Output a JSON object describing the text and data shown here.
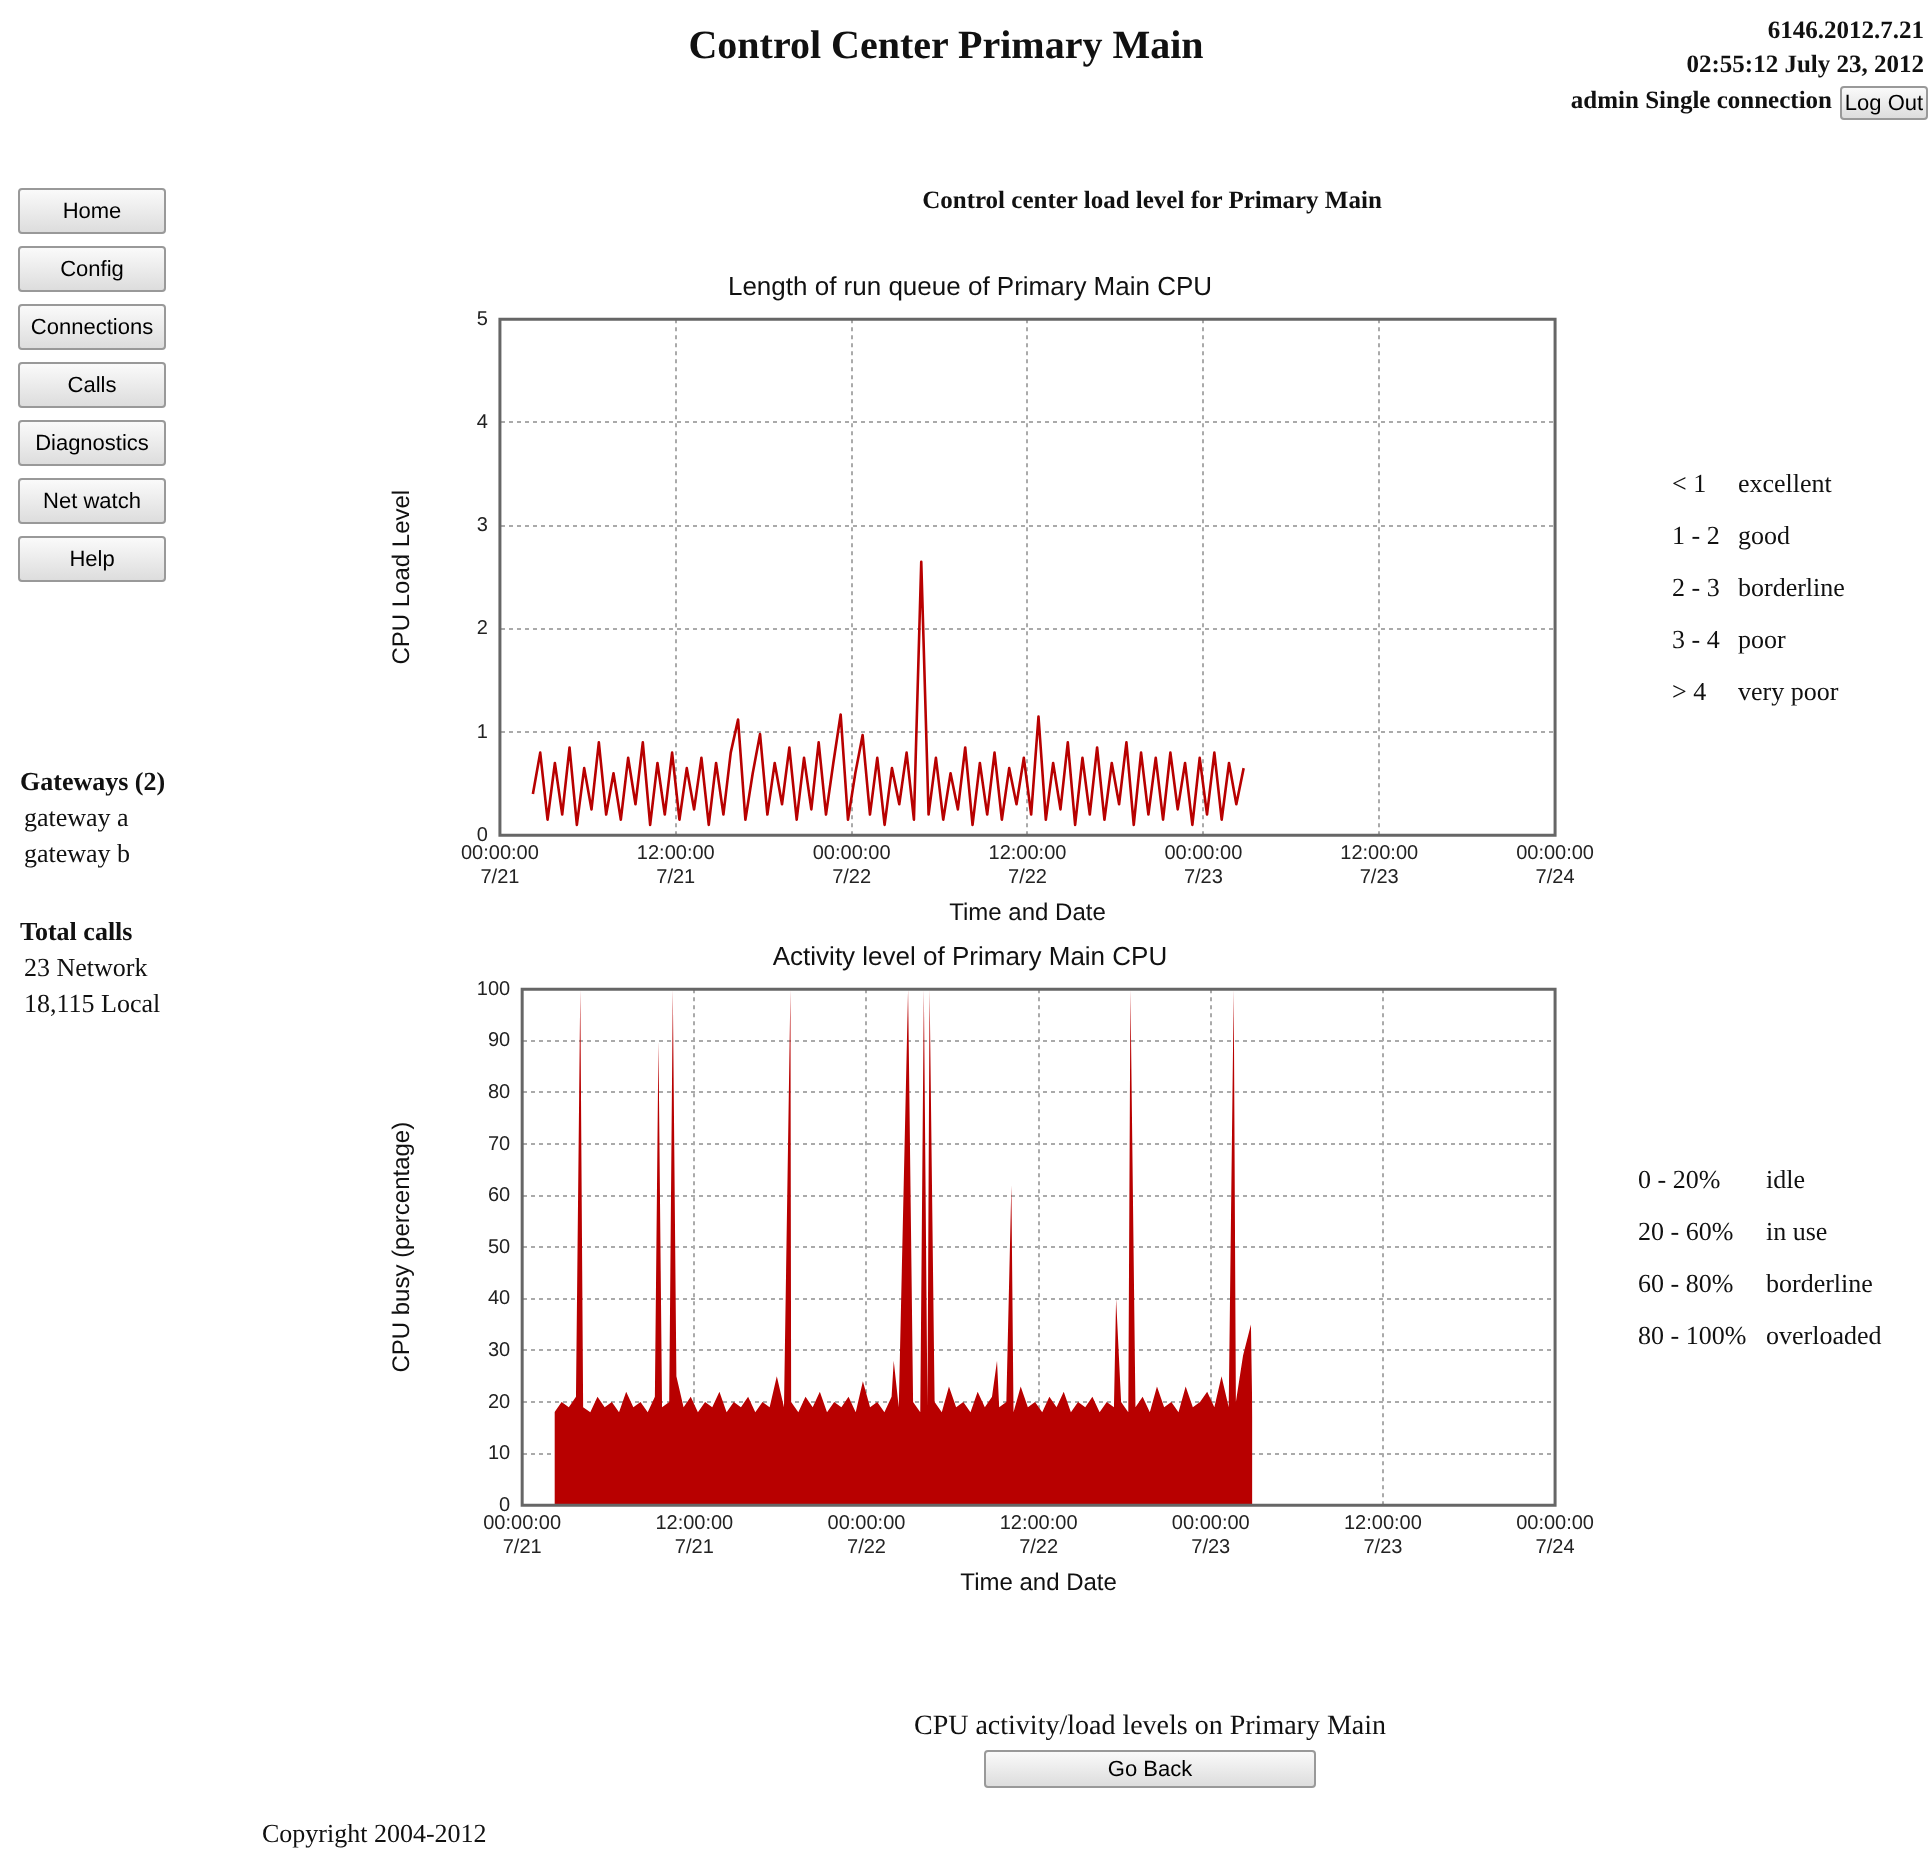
{
  "chart_data": [
    {
      "type": "line",
      "title": "Length of run queue of Primary Main CPU",
      "xlabel": "Time and Date",
      "ylabel": "CPU Load Level",
      "xlim": [
        "2012-07-21T00:00",
        "2012-07-24T00:00"
      ],
      "xticks": [
        {
          "value": "2012-07-21T00:00",
          "label": "00:00:00\n7/21"
        },
        {
          "value": "2012-07-21T12:00",
          "label": "12:00:00\n7/21"
        },
        {
          "value": "2012-07-22T00:00",
          "label": "00:00:00\n7/22"
        },
        {
          "value": "2012-07-22T12:00",
          "label": "12:00:00\n7/22"
        },
        {
          "value": "2012-07-23T00:00",
          "label": "00:00:00\n7/23"
        },
        {
          "value": "2012-07-23T12:00",
          "label": "12:00:00\n7/23"
        },
        {
          "value": "2012-07-24T00:00",
          "label": "00:00:00\n7/24"
        }
      ],
      "ylim": [
        0,
        5
      ],
      "yticks": [
        0,
        1,
        2,
        3,
        4,
        5
      ],
      "grid": true,
      "legend": false,
      "marker": "none",
      "line_style": "solid",
      "series": [
        {
          "color": "#b80000",
          "x": [
            "2012-07-21T02:15",
            "2012-07-21T02:45",
            "2012-07-21T03:15",
            "2012-07-21T03:45",
            "2012-07-21T04:15",
            "2012-07-21T04:45",
            "2012-07-21T05:15",
            "2012-07-21T05:45",
            "2012-07-21T06:15",
            "2012-07-21T06:45",
            "2012-07-21T07:15",
            "2012-07-21T07:45",
            "2012-07-21T08:15",
            "2012-07-21T08:45",
            "2012-07-21T09:15",
            "2012-07-21T09:45",
            "2012-07-21T10:15",
            "2012-07-21T10:45",
            "2012-07-21T11:15",
            "2012-07-21T11:45",
            "2012-07-21T12:15",
            "2012-07-21T12:45",
            "2012-07-21T13:15",
            "2012-07-21T13:45",
            "2012-07-21T14:15",
            "2012-07-21T14:45",
            "2012-07-21T15:15",
            "2012-07-21T15:45",
            "2012-07-21T16:15",
            "2012-07-21T16:45",
            "2012-07-21T17:15",
            "2012-07-21T17:45",
            "2012-07-21T18:15",
            "2012-07-21T18:45",
            "2012-07-21T19:15",
            "2012-07-21T19:45",
            "2012-07-21T20:15",
            "2012-07-21T20:45",
            "2012-07-21T21:15",
            "2012-07-21T21:45",
            "2012-07-21T22:15",
            "2012-07-21T22:45",
            "2012-07-21T23:15",
            "2012-07-21T23:45",
            "2012-07-22T00:15",
            "2012-07-22T00:45",
            "2012-07-22T01:15",
            "2012-07-22T01:45",
            "2012-07-22T02:15",
            "2012-07-22T02:45",
            "2012-07-22T03:15",
            "2012-07-22T03:45",
            "2012-07-22T04:15",
            "2012-07-22T04:45",
            "2012-07-22T05:15",
            "2012-07-22T05:45",
            "2012-07-22T06:15",
            "2012-07-22T06:45",
            "2012-07-22T07:15",
            "2012-07-22T07:45",
            "2012-07-22T08:15",
            "2012-07-22T08:45",
            "2012-07-22T09:15",
            "2012-07-22T09:45",
            "2012-07-22T10:15",
            "2012-07-22T10:45",
            "2012-07-22T11:15",
            "2012-07-22T11:45",
            "2012-07-22T12:15",
            "2012-07-22T12:45",
            "2012-07-22T13:15",
            "2012-07-22T13:45",
            "2012-07-22T14:15",
            "2012-07-22T14:45",
            "2012-07-22T15:15",
            "2012-07-22T15:45",
            "2012-07-22T16:15",
            "2012-07-22T16:45",
            "2012-07-22T17:15",
            "2012-07-22T17:45",
            "2012-07-22T18:15",
            "2012-07-22T18:45",
            "2012-07-22T19:15",
            "2012-07-22T19:45",
            "2012-07-22T20:15",
            "2012-07-22T20:45",
            "2012-07-22T21:15",
            "2012-07-22T21:45",
            "2012-07-22T22:15",
            "2012-07-22T22:45",
            "2012-07-22T23:15",
            "2012-07-22T23:45",
            "2012-07-23T00:15",
            "2012-07-23T00:45",
            "2012-07-23T01:15",
            "2012-07-23T01:45",
            "2012-07-23T02:15",
            "2012-07-23T02:45"
          ],
          "values": [
            0.4,
            0.8,
            0.15,
            0.7,
            0.2,
            0.85,
            0.1,
            0.65,
            0.25,
            0.9,
            0.2,
            0.6,
            0.15,
            0.75,
            0.3,
            0.9,
            0.1,
            0.7,
            0.2,
            0.8,
            0.15,
            0.65,
            0.25,
            0.75,
            0.1,
            0.7,
            0.2,
            0.8,
            1.12,
            0.15,
            0.6,
            0.98,
            0.2,
            0.7,
            0.3,
            0.85,
            0.15,
            0.75,
            0.25,
            0.9,
            0.2,
            0.7,
            1.17,
            0.15,
            0.6,
            0.97,
            0.2,
            0.75,
            0.1,
            0.65,
            0.3,
            0.8,
            0.15,
            2.65,
            0.2,
            0.75,
            0.15,
            0.6,
            0.25,
            0.85,
            0.1,
            0.7,
            0.2,
            0.8,
            0.15,
            0.65,
            0.3,
            0.75,
            0.2,
            1.15,
            0.15,
            0.7,
            0.25,
            0.9,
            0.1,
            0.75,
            0.2,
            0.85,
            0.15,
            0.7,
            0.3,
            0.9,
            0.1,
            0.8,
            0.2,
            0.75,
            0.15,
            0.8,
            0.25,
            0.7,
            0.1,
            0.75,
            0.2,
            0.8,
            0.15,
            0.7,
            0.3,
            0.65
          ]
        }
      ],
      "annotations": [
        "Control Center Primary Main",
        "6146.2012.7.21",
        "02:55:12 July 23, 2012",
        "admin Single connection",
        "Log Out",
        "Control center load level for Primary Main",
        "Home",
        "Config",
        "Connections",
        "Calls",
        "Diagnostics",
        "Net watch",
        "Help",
        "Gateways (2)",
        "gateway a",
        "gateway b",
        "Total calls",
        "23 Network",
        "18,115 Local",
        "< 1",
        "excellent",
        "1 - 2",
        "good",
        "2 - 3",
        "borderline",
        "3 - 4",
        "poor",
        "> 4",
        "very poor"
      ]
    },
    {
      "type": "area",
      "title": "Activity level of Primary Main CPU",
      "xlabel": "Time and Date",
      "ylabel": "CPU busy (percentage)",
      "xlim": [
        "2012-07-21T00:00",
        "2012-07-24T00:00"
      ],
      "xticks": [
        {
          "value": "2012-07-21T00:00",
          "label": "00:00:00\n7/21"
        },
        {
          "value": "2012-07-21T12:00",
          "label": "12:00:00\n7/21"
        },
        {
          "value": "2012-07-22T00:00",
          "label": "00:00:00\n7/22"
        },
        {
          "value": "2012-07-22T12:00",
          "label": "12:00:00\n7/22"
        },
        {
          "value": "2012-07-23T00:00",
          "label": "00:00:00\n7/23"
        },
        {
          "value": "2012-07-23T12:00",
          "label": "12:00:00\n7/23"
        },
        {
          "value": "2012-07-24T00:00",
          "label": "00:00:00\n7/24"
        }
      ],
      "ylim": [
        0,
        100
      ],
      "yticks": [
        0,
        10,
        20,
        30,
        40,
        50,
        60,
        70,
        80,
        90,
        100
      ],
      "grid": true,
      "legend": false,
      "marker": "none",
      "series": [
        {
          "color": "#b80000",
          "x": [
            "2012-07-21T02:15",
            "2012-07-21T02:45",
            "2012-07-21T03:15",
            "2012-07-21T03:45",
            "2012-07-21T04:03",
            "2012-07-21T04:15",
            "2012-07-21T04:45",
            "2012-07-21T05:15",
            "2012-07-21T05:45",
            "2012-07-21T06:15",
            "2012-07-21T06:45",
            "2012-07-21T07:15",
            "2012-07-21T07:45",
            "2012-07-21T08:15",
            "2012-07-21T08:45",
            "2012-07-21T09:15",
            "2012-07-21T09:30",
            "2012-07-21T09:45",
            "2012-07-21T10:15",
            "2012-07-21T10:30",
            "2012-07-21T10:45",
            "2012-07-21T11:15",
            "2012-07-21T11:45",
            "2012-07-21T12:15",
            "2012-07-21T12:45",
            "2012-07-21T13:15",
            "2012-07-21T13:45",
            "2012-07-21T14:15",
            "2012-07-21T14:45",
            "2012-07-21T15:15",
            "2012-07-21T15:45",
            "2012-07-21T16:15",
            "2012-07-21T16:45",
            "2012-07-21T17:15",
            "2012-07-21T17:45",
            "2012-07-21T18:15",
            "2012-07-21T18:42",
            "2012-07-21T18:45",
            "2012-07-21T19:15",
            "2012-07-21T19:45",
            "2012-07-21T20:15",
            "2012-07-21T20:45",
            "2012-07-21T21:15",
            "2012-07-21T21:45",
            "2012-07-21T22:15",
            "2012-07-21T22:45",
            "2012-07-21T23:15",
            "2012-07-21T23:45",
            "2012-07-22T00:15",
            "2012-07-22T00:45",
            "2012-07-22T01:15",
            "2012-07-22T01:45",
            "2012-07-22T01:54",
            "2012-07-22T02:15",
            "2012-07-22T02:54",
            "2012-07-22T03:15",
            "2012-07-22T03:45",
            "2012-07-22T04:00",
            "2012-07-22T04:15",
            "2012-07-22T04:24",
            "2012-07-22T04:45",
            "2012-07-22T05:15",
            "2012-07-22T05:45",
            "2012-07-22T06:15",
            "2012-07-22T06:45",
            "2012-07-22T07:15",
            "2012-07-22T07:45",
            "2012-07-22T08:15",
            "2012-07-22T08:45",
            "2012-07-22T09:06",
            "2012-07-22T09:15",
            "2012-07-22T09:45",
            "2012-07-22T10:06",
            "2012-07-22T10:15",
            "2012-07-22T10:45",
            "2012-07-22T11:15",
            "2012-07-22T11:45",
            "2012-07-22T12:15",
            "2012-07-22T12:45",
            "2012-07-22T13:15",
            "2012-07-22T13:45",
            "2012-07-22T14:15",
            "2012-07-22T14:45",
            "2012-07-22T15:15",
            "2012-07-22T15:45",
            "2012-07-22T16:15",
            "2012-07-22T16:45",
            "2012-07-22T17:15",
            "2012-07-22T17:24",
            "2012-07-22T17:45",
            "2012-07-22T18:15",
            "2012-07-22T18:24",
            "2012-07-22T18:45",
            "2012-07-22T19:15",
            "2012-07-22T19:45",
            "2012-07-22T20:15",
            "2012-07-22T20:45",
            "2012-07-22T21:15",
            "2012-07-22T21:45",
            "2012-07-22T22:15",
            "2012-07-22T22:45",
            "2012-07-22T23:15",
            "2012-07-22T23:45",
            "2012-07-23T00:15",
            "2012-07-23T00:45",
            "2012-07-23T01:15",
            "2012-07-23T01:36",
            "2012-07-23T01:45",
            "2012-07-23T02:15",
            "2012-07-23T02:48",
            "2012-07-23T02:54"
          ],
          "values": [
            18,
            20,
            19,
            21,
            100,
            19,
            18,
            21,
            19,
            20,
            18,
            22,
            19,
            20,
            18,
            21,
            90,
            19,
            20,
            100,
            25,
            19,
            21,
            18,
            20,
            19,
            22,
            18,
            20,
            19,
            21,
            18,
            20,
            19,
            25,
            19,
            100,
            20,
            18,
            21,
            19,
            22,
            18,
            20,
            19,
            21,
            18,
            24,
            19,
            20,
            18,
            21,
            28,
            19,
            100,
            20,
            18,
            100,
            19,
            100,
            20,
            18,
            23,
            19,
            20,
            18,
            22,
            19,
            21,
            28,
            19,
            20,
            62,
            18,
            23,
            19,
            20,
            18,
            21,
            19,
            22,
            18,
            20,
            19,
            21,
            18,
            20,
            19,
            40,
            20,
            18,
            100,
            19,
            21,
            18,
            23,
            19,
            20,
            18,
            23,
            19,
            20,
            22,
            19,
            25,
            19,
            100,
            20,
            29,
            35,
            17
          ]
        }
      ],
      "annotations": [
        "0 - 20%",
        "idle",
        "20 - 60%",
        "in use",
        "60 - 80%",
        "borderline",
        "80 - 100%",
        "overloaded",
        "CPU activity/load levels on Primary Main",
        "Go Back",
        "Copyright 2004-2012"
      ]
    }
  ]
}
